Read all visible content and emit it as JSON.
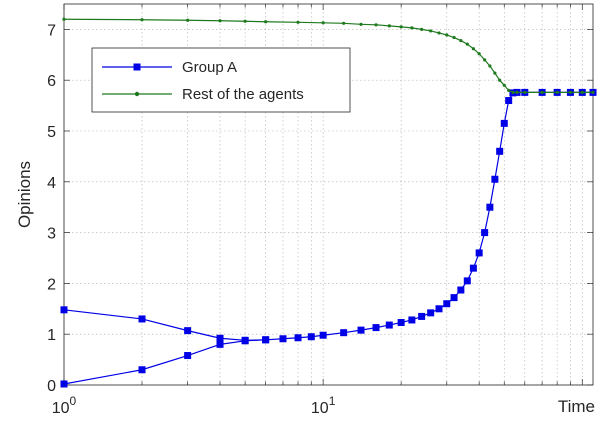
{
  "chart_data": {
    "type": "line",
    "xlabel": "Time",
    "ylabel": "Opinions",
    "xscale": "log",
    "xlim": [
      1,
      110
    ],
    "ylim": [
      0,
      7.5
    ],
    "grid": true,
    "legend_position": "top-left",
    "x_tick_labels": [
      {
        "base": "10",
        "exp": "0"
      },
      {
        "base": "10",
        "exp": "1"
      }
    ],
    "y_tick_labels": [
      "0",
      "1",
      "2",
      "3",
      "4",
      "5",
      "6",
      "7"
    ],
    "colors": {
      "group_a": "#0000e6",
      "rest": "#1f7a1f"
    },
    "series": [
      {
        "name": "Group A",
        "marker": "square",
        "color": "#0000e6",
        "curves": [
          [
            [
              1,
              0.02
            ],
            [
              2,
              0.3
            ],
            [
              3,
              0.58
            ],
            [
              4,
              0.8
            ],
            [
              5,
              0.87
            ],
            [
              6,
              0.89
            ],
            [
              7,
              0.91
            ],
            [
              8,
              0.93
            ],
            [
              9,
              0.95
            ],
            [
              10,
              0.98
            ],
            [
              12,
              1.03
            ],
            [
              14,
              1.08
            ],
            [
              16,
              1.13
            ],
            [
              18,
              1.18
            ],
            [
              20,
              1.23
            ],
            [
              22,
              1.28
            ],
            [
              24,
              1.35
            ],
            [
              26,
              1.42
            ],
            [
              28,
              1.5
            ],
            [
              30,
              1.6
            ],
            [
              32,
              1.72
            ],
            [
              34,
              1.87
            ],
            [
              36,
              2.05
            ],
            [
              38,
              2.3
            ],
            [
              40,
              2.6
            ],
            [
              42,
              3.0
            ],
            [
              44,
              3.5
            ],
            [
              46,
              4.05
            ],
            [
              48,
              4.6
            ],
            [
              50,
              5.15
            ],
            [
              52,
              5.6
            ],
            [
              54,
              5.75
            ],
            [
              56,
              5.76
            ],
            [
              60,
              5.76
            ],
            [
              70,
              5.76
            ],
            [
              80,
              5.76
            ],
            [
              90,
              5.76
            ],
            [
              100,
              5.76
            ],
            [
              110,
              5.76
            ]
          ],
          [
            [
              1,
              1.48
            ],
            [
              2,
              1.3
            ],
            [
              3,
              1.07
            ],
            [
              4,
              0.92
            ],
            [
              5,
              0.88
            ],
            [
              6,
              0.89
            ]
          ]
        ]
      },
      {
        "name": "Rest of the agents",
        "marker": "dot",
        "color": "#1f7a1f",
        "curves": [
          [
            [
              1,
              7.2
            ],
            [
              2,
              7.19
            ],
            [
              3,
              7.18
            ],
            [
              4,
              7.17
            ],
            [
              5,
              7.16
            ],
            [
              6,
              7.15
            ],
            [
              8,
              7.14
            ],
            [
              10,
              7.13
            ],
            [
              12,
              7.12
            ],
            [
              14,
              7.1
            ],
            [
              16,
              7.09
            ],
            [
              18,
              7.07
            ],
            [
              20,
              7.05
            ],
            [
              22,
              7.03
            ],
            [
              24,
              7.0
            ],
            [
              26,
              6.97
            ],
            [
              28,
              6.93
            ],
            [
              30,
              6.89
            ],
            [
              32,
              6.84
            ],
            [
              34,
              6.78
            ],
            [
              36,
              6.71
            ],
            [
              38,
              6.62
            ],
            [
              40,
              6.52
            ],
            [
              42,
              6.4
            ],
            [
              44,
              6.28
            ],
            [
              46,
              6.14
            ],
            [
              48,
              6.0
            ],
            [
              50,
              5.9
            ],
            [
              52,
              5.8
            ],
            [
              54,
              5.76
            ],
            [
              56,
              5.76
            ],
            [
              60,
              5.76
            ],
            [
              70,
              5.76
            ],
            [
              80,
              5.76
            ],
            [
              90,
              5.76
            ],
            [
              100,
              5.76
            ],
            [
              110,
              5.76
            ]
          ]
        ]
      }
    ]
  }
}
